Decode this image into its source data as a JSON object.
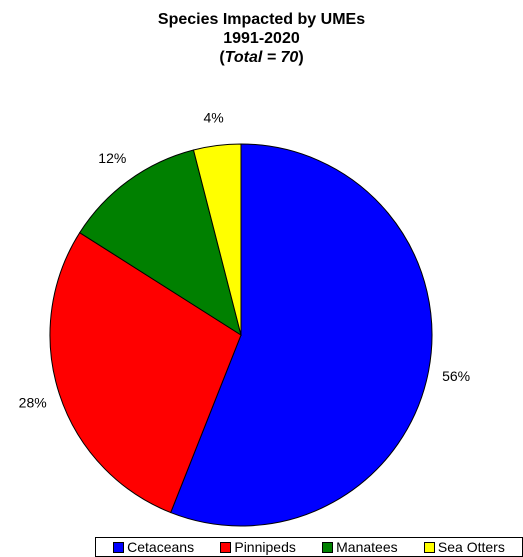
{
  "chart_data": {
    "type": "pie",
    "title_lines": [
      "Species Impacted by UMEs",
      "1991-2020"
    ],
    "total_prefix": "Total = 70",
    "categories": [
      "Cetaceans",
      "Pinnipeds",
      "Manatees",
      "Sea Otters"
    ],
    "values": [
      56,
      28,
      12,
      4
    ],
    "labels": [
      "56%",
      "28%",
      "12%",
      "4%"
    ],
    "colors": [
      "#0000ff",
      "#ff0000",
      "#008000",
      "#ffff00"
    ],
    "start_angle": "12 o'clock",
    "direction": "clockwise",
    "legend_position": "bottom"
  }
}
